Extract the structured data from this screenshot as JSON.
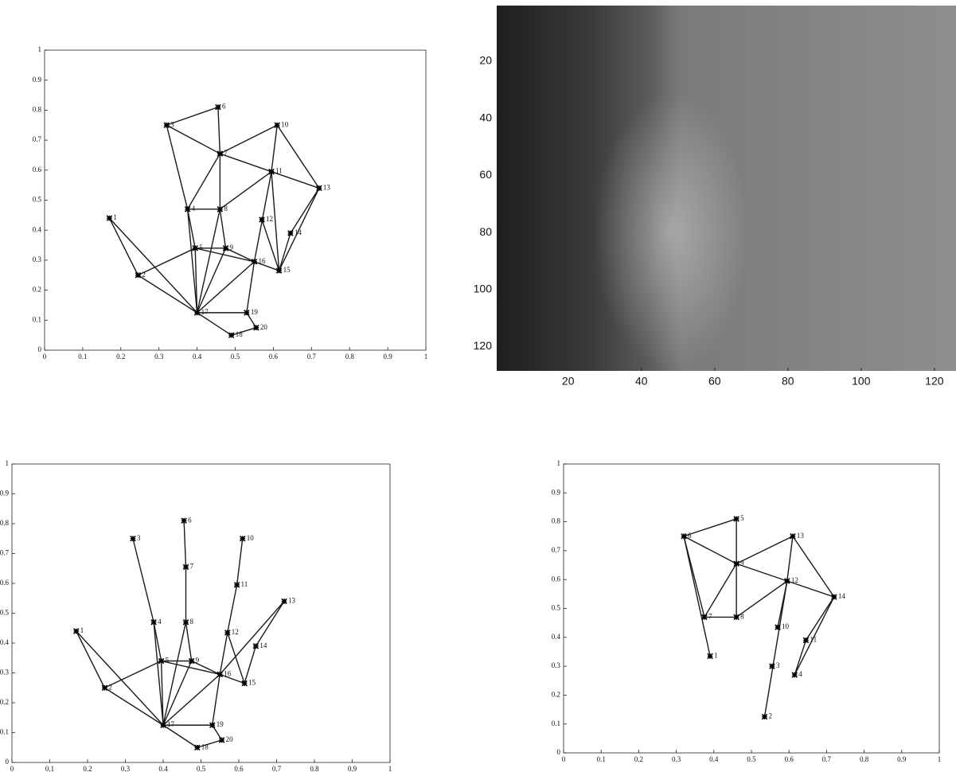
{
  "chart_data": [
    {
      "type": "network",
      "point_labels": [
        "1",
        "2",
        "3",
        "4",
        "5",
        "6",
        "7",
        "8",
        "9",
        "10",
        "11",
        "12",
        "13",
        "14",
        "15",
        "16",
        "17",
        "18",
        "19",
        "20"
      ],
      "x": [
        0.17,
        0.245,
        0.32,
        0.375,
        0.395,
        0.455,
        0.46,
        0.46,
        0.475,
        0.61,
        0.595,
        0.57,
        0.72,
        0.645,
        0.615,
        0.55,
        0.4,
        0.49,
        0.53,
        0.555
      ],
      "values": [
        0.44,
        0.25,
        0.75,
        0.47,
        0.34,
        0.81,
        0.655,
        0.47,
        0.34,
        0.75,
        0.595,
        0.435,
        0.54,
        0.39,
        0.265,
        0.295,
        0.125,
        0.05,
        0.125,
        0.075
      ],
      "edges": [
        [
          0,
          1
        ],
        [
          0,
          16
        ],
        [
          1,
          4
        ],
        [
          1,
          16
        ],
        [
          2,
          5
        ],
        [
          2,
          6
        ],
        [
          2,
          3
        ],
        [
          3,
          6
        ],
        [
          3,
          4
        ],
        [
          3,
          16
        ],
        [
          4,
          16
        ],
        [
          5,
          6
        ],
        [
          6,
          9
        ],
        [
          6,
          10
        ],
        [
          6,
          7
        ],
        [
          7,
          3
        ],
        [
          7,
          8
        ],
        [
          7,
          10
        ],
        [
          7,
          16
        ],
        [
          8,
          4
        ],
        [
          8,
          16
        ],
        [
          8,
          15
        ],
        [
          9,
          10
        ],
        [
          9,
          12
        ],
        [
          10,
          12
        ],
        [
          10,
          15
        ],
        [
          10,
          14
        ],
        [
          12,
          13
        ],
        [
          12,
          14
        ],
        [
          11,
          14
        ],
        [
          13,
          14
        ],
        [
          15,
          14
        ],
        [
          15,
          16
        ],
        [
          15,
          18
        ],
        [
          16,
          18
        ],
        [
          16,
          17
        ],
        [
          17,
          19
        ],
        [
          18,
          19
        ],
        [
          4,
          15
        ]
      ],
      "xlim": [
        0,
        1
      ],
      "ylim": [
        0,
        1
      ],
      "xticks": [
        0,
        0.1,
        0.2,
        0.3,
        0.4,
        0.5,
        0.6,
        0.7,
        0.8,
        0.9,
        1
      ],
      "yticks": [
        0,
        0.1,
        0.2,
        0.3,
        0.4,
        0.5,
        0.6,
        0.7,
        0.8,
        0.9,
        1
      ]
    },
    {
      "type": "image",
      "xlim": [
        0.5,
        125.9
      ],
      "ylim": [
        128.5,
        0.5
      ],
      "xticks": [
        20,
        40,
        60,
        80,
        100,
        120
      ],
      "yticks": [
        20,
        40,
        60,
        80,
        100,
        120
      ]
    },
    {
      "type": "network",
      "point_labels": [
        "1",
        "2",
        "3",
        "4",
        "5",
        "6",
        "7",
        "8",
        "9",
        "10",
        "11",
        "12",
        "13",
        "14",
        "15",
        "16",
        "17",
        "18",
        "19",
        "20"
      ],
      "x": [
        0.17,
        0.245,
        0.32,
        0.375,
        0.395,
        0.455,
        0.46,
        0.46,
        0.475,
        0.61,
        0.595,
        0.57,
        0.72,
        0.645,
        0.615,
        0.55,
        0.4,
        0.49,
        0.53,
        0.555
      ],
      "values": [
        0.44,
        0.25,
        0.75,
        0.47,
        0.34,
        0.81,
        0.655,
        0.47,
        0.34,
        0.75,
        0.595,
        0.435,
        0.54,
        0.39,
        0.265,
        0.295,
        0.125,
        0.05,
        0.125,
        0.075
      ],
      "edges": [
        [
          0,
          1
        ],
        [
          0,
          16
        ],
        [
          1,
          4
        ],
        [
          1,
          16
        ],
        [
          2,
          3
        ],
        [
          3,
          4
        ],
        [
          3,
          16
        ],
        [
          4,
          16
        ],
        [
          5,
          6
        ],
        [
          6,
          7
        ],
        [
          7,
          8
        ],
        [
          7,
          16
        ],
        [
          8,
          16
        ],
        [
          4,
          8
        ],
        [
          8,
          15
        ],
        [
          9,
          10
        ],
        [
          10,
          11
        ],
        [
          11,
          15
        ],
        [
          11,
          14
        ],
        [
          12,
          13
        ],
        [
          12,
          15
        ],
        [
          13,
          14
        ],
        [
          15,
          14
        ],
        [
          15,
          16
        ],
        [
          15,
          18
        ],
        [
          4,
          15
        ],
        [
          16,
          18
        ],
        [
          16,
          17
        ],
        [
          17,
          19
        ],
        [
          18,
          19
        ]
      ],
      "xlim": [
        0,
        1
      ],
      "ylim": [
        0,
        1
      ],
      "xticks": [
        0,
        0.1,
        0.2,
        0.3,
        0.4,
        0.5,
        0.6,
        0.7,
        0.8,
        0.9,
        1
      ],
      "yticks": [
        0,
        0.1,
        0.2,
        0.3,
        0.4,
        0.5,
        0.6,
        0.7,
        0.8,
        0.9,
        1
      ]
    },
    {
      "type": "network",
      "point_labels": [
        "1",
        "2",
        "3",
        "4",
        "5",
        "6",
        "7",
        "8",
        "9",
        "10",
        "11",
        "12",
        "13",
        "14"
      ],
      "x": [
        0.39,
        0.535,
        0.555,
        0.615,
        0.46,
        0.32,
        0.375,
        0.46,
        0.46,
        0.57,
        0.645,
        0.595,
        0.61,
        0.72
      ],
      "values": [
        0.335,
        0.125,
        0.3,
        0.27,
        0.81,
        0.75,
        0.47,
        0.47,
        0.655,
        0.435,
        0.39,
        0.595,
        0.75,
        0.54
      ],
      "edges": [
        [
          5,
          4
        ],
        [
          4,
          8
        ],
        [
          5,
          8
        ],
        [
          5,
          6
        ],
        [
          5,
          0
        ],
        [
          6,
          8
        ],
        [
          6,
          7
        ],
        [
          7,
          8
        ],
        [
          8,
          12
        ],
        [
          8,
          11
        ],
        [
          11,
          12
        ],
        [
          12,
          13
        ],
        [
          11,
          13
        ],
        [
          11,
          1
        ],
        [
          11,
          9
        ],
        [
          13,
          3
        ],
        [
          13,
          10
        ],
        [
          10,
          3
        ],
        [
          11,
          7
        ]
      ],
      "xlim": [
        0,
        1
      ],
      "ylim": [
        0,
        1
      ],
      "xticks": [
        0,
        0.1,
        0.2,
        0.3,
        0.4,
        0.5,
        0.6,
        0.7,
        0.8,
        0.9,
        1
      ],
      "yticks": [
        0,
        0.1,
        0.2,
        0.3,
        0.4,
        0.5,
        0.6,
        0.7,
        0.8,
        0.9,
        1
      ]
    }
  ]
}
